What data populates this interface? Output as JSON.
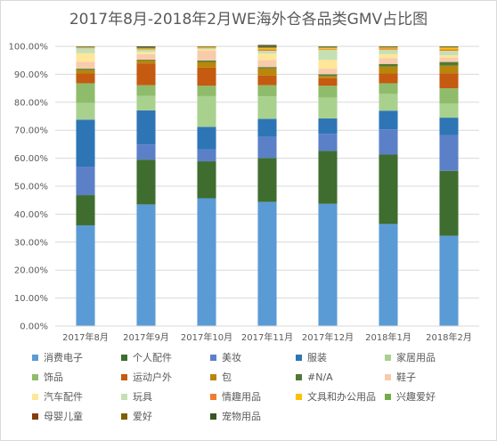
{
  "chart_data": {
    "type": "bar",
    "stacked": "percent",
    "title": "2017年8月-2018年2月WE海外仓各品类GMV占比图",
    "xlabel": "",
    "ylabel": "",
    "ylim": [
      0,
      100
    ],
    "y_ticks": [
      "0.00%",
      "10.00%",
      "20.00%",
      "30.00%",
      "40.00%",
      "50.00%",
      "60.00%",
      "70.00%",
      "80.00%",
      "90.00%",
      "100.00%"
    ],
    "grid": true,
    "legend_position": "bottom",
    "categories": [
      "2017年8月",
      "2017年9月",
      "2017年10月",
      "2017年11月",
      "2017年12月",
      "2018年1月",
      "2018年2月"
    ],
    "series": [
      {
        "name": "消费电子",
        "color": "#5b9bd5",
        "values": [
          36.0,
          43.5,
          45.7,
          44.4,
          43.7,
          36.5,
          32.3
        ]
      },
      {
        "name": "个人配件",
        "color": "#3f6d2f",
        "values": [
          10.8,
          16.0,
          13.2,
          15.7,
          18.9,
          24.8,
          23.2
        ]
      },
      {
        "name": "美妆",
        "color": "#5b80c8",
        "values": [
          10.2,
          5.4,
          4.3,
          7.5,
          6.1,
          9.0,
          12.7
        ]
      },
      {
        "name": "服装",
        "color": "#2e75b6",
        "values": [
          16.8,
          12.2,
          8.0,
          6.5,
          5.5,
          6.7,
          6.3
        ]
      },
      {
        "name": "家居用品",
        "color": "#a9d18e",
        "values": [
          6.0,
          5.2,
          11.0,
          8.0,
          7.5,
          6.0,
          5.0
        ]
      },
      {
        "name": "饰品",
        "color": "#8fbc6a",
        "values": [
          7.0,
          3.8,
          3.7,
          4.0,
          4.2,
          3.8,
          5.5
        ]
      },
      {
        "name": "运动户外",
        "color": "#c55a11",
        "values": [
          3.5,
          7.8,
          6.5,
          3.5,
          2.7,
          3.5,
          5.4
        ]
      },
      {
        "name": "包",
        "color": "#b8860b",
        "values": [
          1.2,
          1.0,
          2.0,
          2.5,
          0.8,
          2.5,
          2.7
        ]
      },
      {
        "name": "#N/A",
        "color": "#4e7a36",
        "values": [
          0.5,
          0.3,
          0.5,
          0.5,
          0.6,
          0.9,
          1.3
        ]
      },
      {
        "name": "鞋子",
        "color": "#f8cbad",
        "values": [
          2.5,
          2.0,
          3.5,
          2.5,
          2.0,
          2.0,
          1.6
        ]
      },
      {
        "name": "汽车配件",
        "color": "#ffe699",
        "values": [
          3.0,
          0.8,
          0.5,
          2.3,
          3.2,
          1.5,
          0.8
        ]
      },
      {
        "name": "玩具",
        "color": "#c5e0b4",
        "values": [
          1.8,
          0.8,
          0.4,
          1.0,
          3.6,
          1.6,
          1.6
        ]
      },
      {
        "name": "情趣用品",
        "color": "#ed7d31",
        "values": [
          0.2,
          0.2,
          0.2,
          0.5,
          0.3,
          0.4,
          0.5
        ]
      },
      {
        "name": "文具和办公用品",
        "color": "#ffc000",
        "values": [
          0.1,
          0.2,
          0.2,
          0.4,
          0.3,
          0.3,
          0.6
        ]
      },
      {
        "name": "兴趣爱好",
        "color": "#70ad47",
        "values": [
          0.2,
          0.2,
          0.1,
          0.3,
          0.3,
          0.2,
          0.2
        ]
      },
      {
        "name": "母婴儿童",
        "color": "#843c0c",
        "values": [
          0.1,
          0.2,
          0.1,
          0.3,
          0.2,
          0.2,
          0.2
        ]
      },
      {
        "name": "爱好",
        "color": "#7f6000",
        "values": [
          0.0,
          0.1,
          0.0,
          0.2,
          0.1,
          0.1,
          0.1
        ]
      },
      {
        "name": "宠物用品",
        "color": "#375623",
        "values": [
          0.1,
          0.3,
          0.1,
          0.4,
          0.0,
          0.0,
          0.0
        ]
      }
    ]
  }
}
